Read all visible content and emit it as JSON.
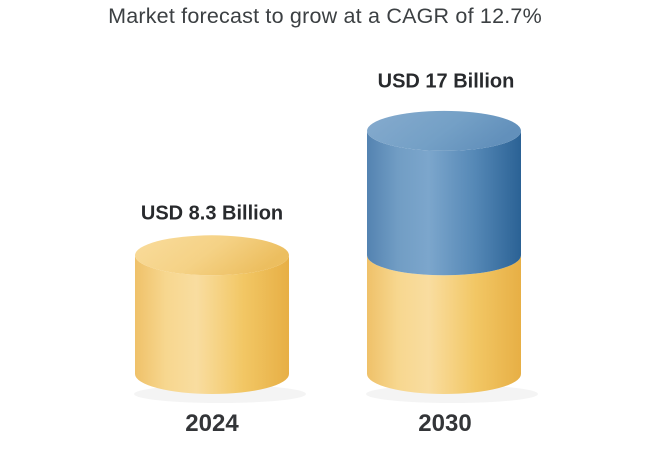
{
  "chart": {
    "title": "Market forecast to grow at a CAGR of 12.7%"
  },
  "chart_data": {
    "type": "bar",
    "subtype": "3d-stacked-cylinder",
    "title": "Market forecast to grow at a CAGR of 12.7%",
    "categories": [
      "2024",
      "2030"
    ],
    "values": [
      8.3,
      17
    ],
    "unit": "USD Billion",
    "cagr_text": "12.7%",
    "value_labels": [
      "USD 8.3 Billion",
      "USD 17 Billion"
    ],
    "legend": "none",
    "axes": "none",
    "grid": "off",
    "bars": [
      {
        "category": "2024",
        "value_label": "USD 8.3 Billion",
        "total": 8.3,
        "segments": [
          {
            "value": 8.3,
            "color_key": "gold"
          }
        ]
      },
      {
        "category": "2030",
        "value_label": "USD 17 Billion",
        "total": 17,
        "segments": [
          {
            "value": 8.3,
            "color_key": "gold"
          },
          {
            "value": 8.7,
            "color_key": "blue"
          }
        ]
      }
    ],
    "colors": {
      "gold": "#F2C463",
      "blue": "#4E81AF",
      "title_text": "#3C4043",
      "label_text": "#282A2D"
    }
  }
}
